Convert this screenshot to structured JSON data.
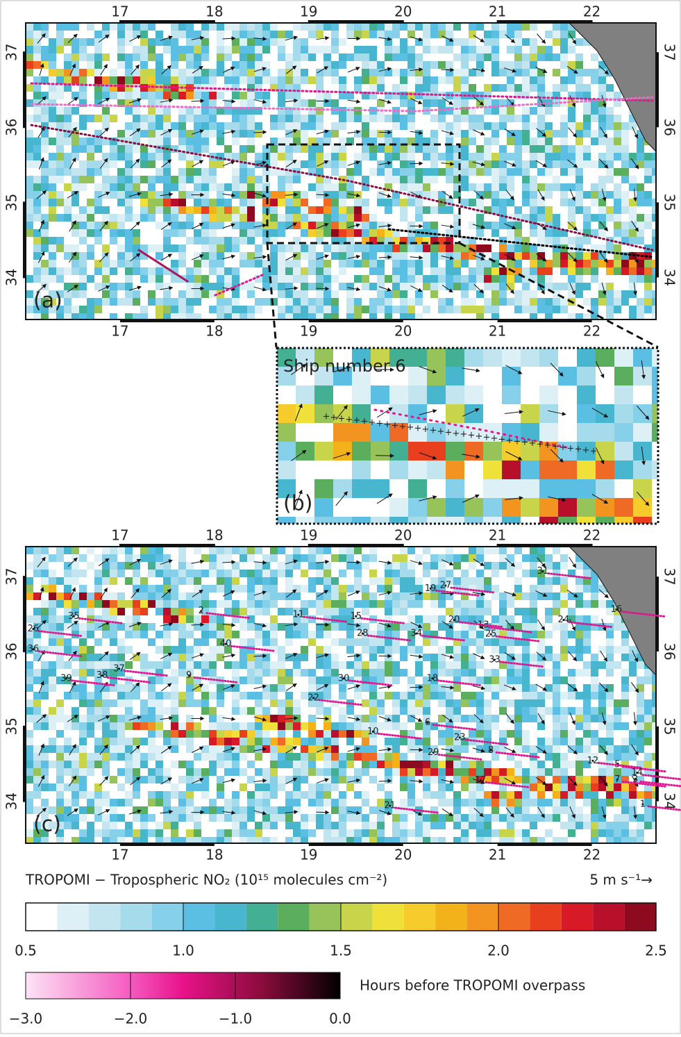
{
  "panel_a": {
    "label": "(a)",
    "lon_range": [
      16.0,
      22.68
    ],
    "lat_range": [
      33.44,
      37.39
    ],
    "x_ticks": [
      17,
      18,
      19,
      20,
      21,
      22
    ],
    "y_ticks": [
      34,
      35,
      36,
      37
    ]
  },
  "panel_b": {
    "label": "(b)",
    "title": "Ship number 6"
  },
  "panel_c": {
    "label": "(c)",
    "lon_range": [
      16.0,
      22.68
    ],
    "lat_range": [
      33.44,
      37.4
    ],
    "x_ticks": [
      17,
      18,
      19,
      20,
      21,
      22
    ],
    "y_ticks": [
      34,
      35,
      36,
      37
    ],
    "ship_labels": [
      {
        "label": "1",
        "lon": 22.54,
        "lat": 33.96
      },
      {
        "label": "2",
        "lon": 17.86,
        "lat": 36.54
      },
      {
        "label": "3",
        "lon": 22.46,
        "lat": 34.29
      },
      {
        "label": "5",
        "lon": 22.27,
        "lat": 34.49
      },
      {
        "label": "6",
        "lon": 20.26,
        "lat": 35.05
      },
      {
        "label": "7",
        "lon": 22.27,
        "lat": 34.29
      },
      {
        "label": "8",
        "lon": 20.93,
        "lat": 34.68
      },
      {
        "label": "9",
        "lon": 17.73,
        "lat": 35.68
      },
      {
        "label": "10",
        "lon": 19.68,
        "lat": 34.93
      },
      {
        "label": "11",
        "lon": 18.89,
        "lat": 36.49
      },
      {
        "label": "12",
        "lon": 22.01,
        "lat": 34.54
      },
      {
        "label": "13",
        "lon": 20.85,
        "lat": 36.35
      },
      {
        "label": "14",
        "lon": 22.48,
        "lat": 34.38
      },
      {
        "label": "15",
        "lon": 19.5,
        "lat": 36.47
      },
      {
        "label": "16",
        "lon": 22.26,
        "lat": 36.56
      },
      {
        "label": "17",
        "lon": 20.82,
        "lat": 34.28
      },
      {
        "label": "18",
        "lon": 20.31,
        "lat": 35.64
      },
      {
        "label": "19",
        "lon": 20.29,
        "lat": 36.84
      },
      {
        "label": "20",
        "lon": 20.54,
        "lat": 36.42
      },
      {
        "label": "21",
        "lon": 19.86,
        "lat": 33.94
      },
      {
        "label": "22",
        "lon": 19.05,
        "lat": 35.38
      },
      {
        "label": "23",
        "lon": 20.6,
        "lat": 34.85
      },
      {
        "label": "24",
        "lon": 21.7,
        "lat": 36.42
      },
      {
        "label": "25",
        "lon": 20.93,
        "lat": 36.23
      },
      {
        "label": "26",
        "lon": 16.08,
        "lat": 36.3
      },
      {
        "label": "27",
        "lon": 20.45,
        "lat": 36.88
      },
      {
        "label": "28",
        "lon": 19.57,
        "lat": 36.24
      },
      {
        "label": "29",
        "lon": 20.32,
        "lat": 34.65
      },
      {
        "label": "30",
        "lon": 19.37,
        "lat": 35.64
      },
      {
        "label": "31",
        "lon": 21.48,
        "lat": 37.07
      },
      {
        "label": "33",
        "lon": 20.97,
        "lat": 35.89
      },
      {
        "label": "34",
        "lon": 20.14,
        "lat": 36.24
      },
      {
        "label": "35",
        "lon": 16.51,
        "lat": 36.47
      },
      {
        "label": "36",
        "lon": 16.08,
        "lat": 36.03
      },
      {
        "label": "37",
        "lon": 16.99,
        "lat": 35.77
      },
      {
        "label": "38",
        "lon": 16.81,
        "lat": 35.68
      },
      {
        "label": "39",
        "lon": 16.43,
        "lat": 35.64
      },
      {
        "label": "40",
        "lon": 18.12,
        "lat": 36.1
      }
    ]
  },
  "no2_colorbar": {
    "title": "TROPOMI − Tropospheric NO₂ (10¹⁵ molecules cm⁻²)",
    "wind_scale": "5 m s⁻¹→",
    "range": [
      0.5,
      2.5
    ],
    "ticks": [
      {
        "value": 0.5,
        "label": "0.5"
      },
      {
        "value": 1.0,
        "label": "1.0"
      },
      {
        "value": 1.5,
        "label": "1.5"
      },
      {
        "value": 2.0,
        "label": "2.0"
      },
      {
        "value": 2.5,
        "label": "2.5"
      }
    ],
    "colors": [
      "#ffffff",
      "#dcf0f6",
      "#c2e5ef",
      "#a6dbec",
      "#86d0ea",
      "#5bbfe3",
      "#49b6cf",
      "#43b094",
      "#5aae5e",
      "#96c45a",
      "#c8d44a",
      "#f0e03a",
      "#f6cc2c",
      "#f3b21a",
      "#f39420",
      "#ef6a24",
      "#e8401f",
      "#d81a28",
      "#b8102a",
      "#8e0a1e"
    ]
  },
  "time_colorbar": {
    "title": "Hours before TROPOMI overpass",
    "range": [
      -3.0,
      0.0
    ],
    "ticks": [
      {
        "value": -3.0,
        "label": "−3.0"
      },
      {
        "value": -2.0,
        "label": "−2.0"
      },
      {
        "value": -1.0,
        "label": "−1.0"
      },
      {
        "value": 0.0,
        "label": "0.0"
      }
    ]
  }
}
